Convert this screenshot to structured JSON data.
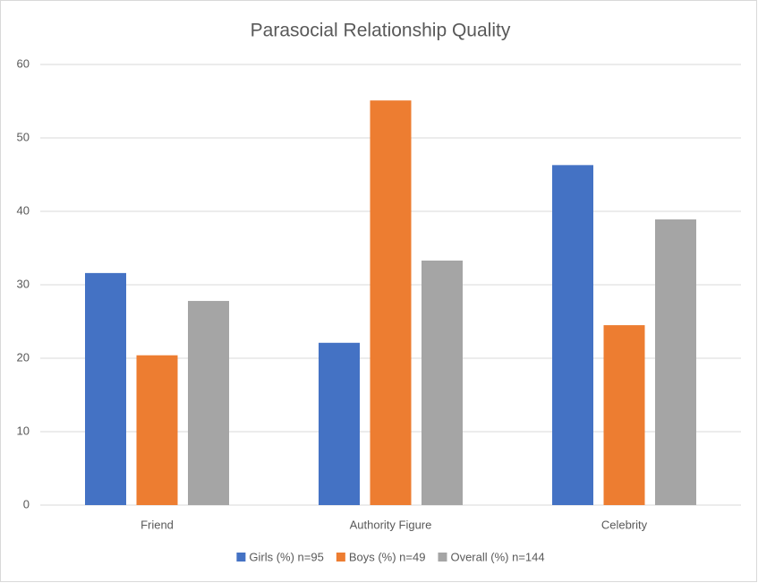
{
  "chart_data": {
    "type": "bar",
    "title": "Parasocial Relationship Quality",
    "categories": [
      "Friend",
      "Authority Figure",
      "Celebrity"
    ],
    "series": [
      {
        "name": "Girls (%) n=95",
        "color": "#4472c4",
        "values": [
          31.6,
          22.1,
          46.3
        ]
      },
      {
        "name": "Boys (%) n=49",
        "color": "#ed7d31",
        "values": [
          20.4,
          55.1,
          24.5
        ]
      },
      {
        "name": "Overall (%) n=144",
        "color": "#a5a5a5",
        "values": [
          27.8,
          33.3,
          38.9
        ]
      }
    ],
    "ylim": [
      0,
      60
    ],
    "yticks": [
      0,
      10,
      20,
      30,
      40,
      50,
      60
    ],
    "grid": true,
    "legend": "bottom"
  }
}
